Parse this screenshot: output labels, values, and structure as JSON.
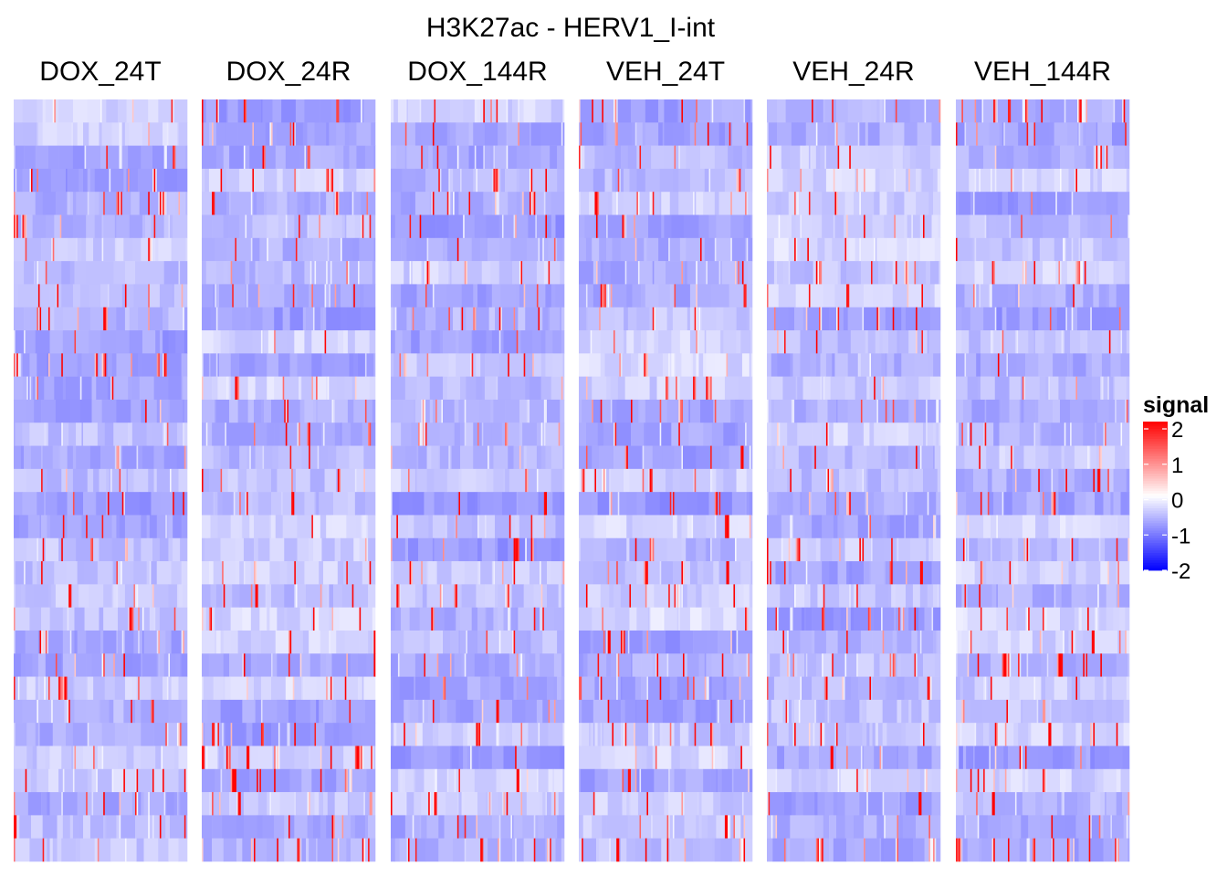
{
  "chart_data": {
    "type": "heatmap",
    "title": "H3K27ac - HERV1_I-int",
    "panels": [
      "DOX_24T",
      "DOX_24R",
      "DOX_144R",
      "VEH_24T",
      "VEH_24R",
      "VEH_144R"
    ],
    "row_count": 33,
    "column_count_per_panel": 120,
    "legend": {
      "title": "signal",
      "ticks": [
        "2",
        "1",
        "0",
        "-1",
        "-2"
      ],
      "range": [
        -2,
        2
      ],
      "placement": "right"
    },
    "colors": {
      "low": "#0000FF",
      "mid": "#FFFFFF",
      "high": "#FF0000",
      "background": "#FFFFFF"
    },
    "note": "Per-cell signal values are not individually readable; cells are mostly between -1 and 0 with sparse values near 2."
  }
}
